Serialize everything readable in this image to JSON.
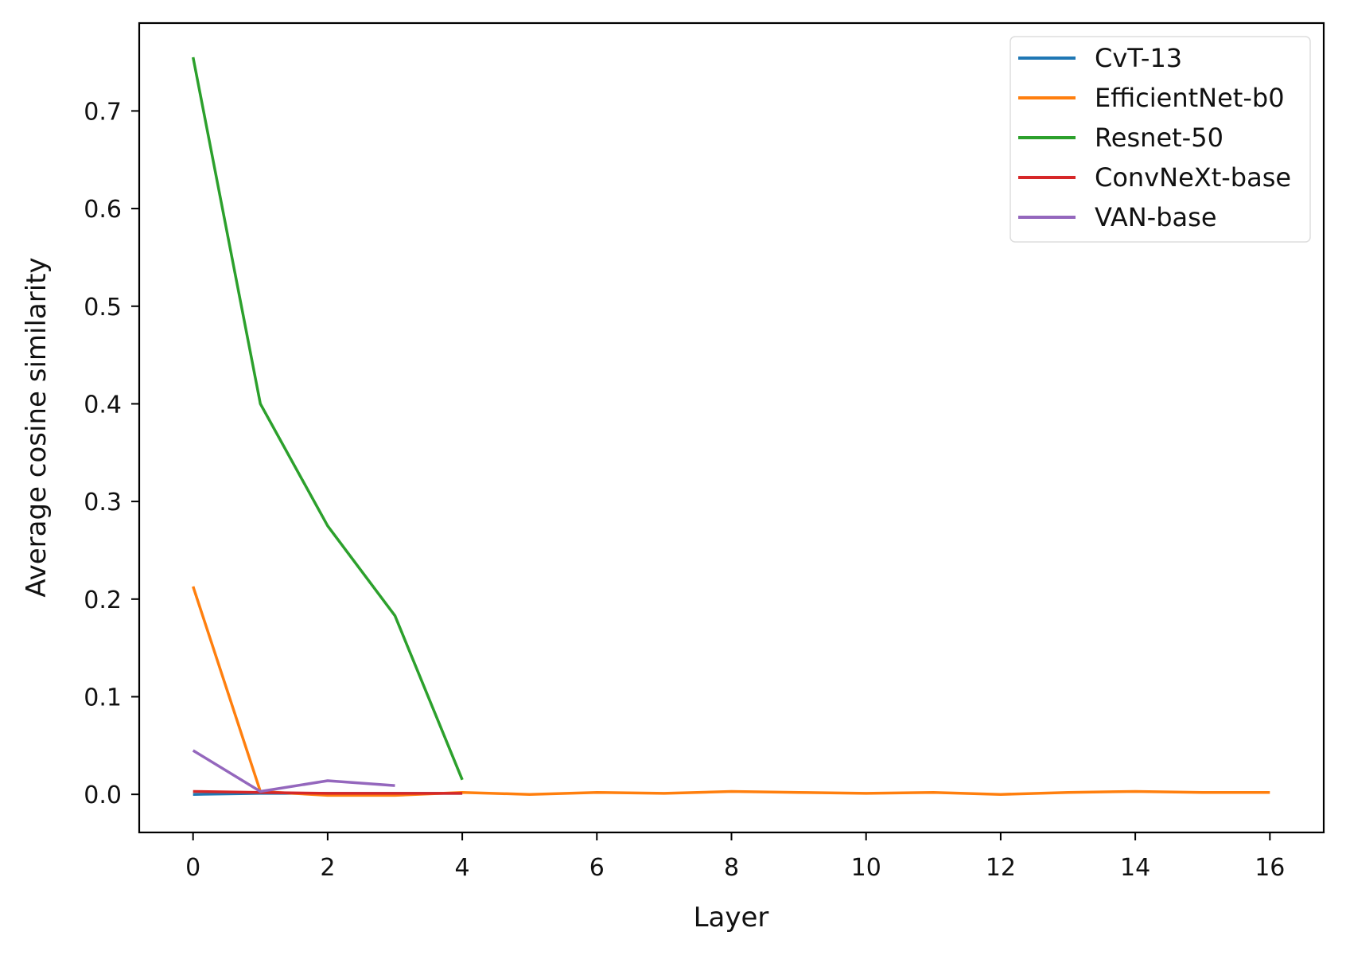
{
  "chart_data": {
    "type": "line",
    "xlabel": "Layer",
    "ylabel": "Average cosine similarity",
    "xlim": [
      -0.8,
      16.8
    ],
    "ylim": [
      -0.039,
      0.79
    ],
    "xticks": [
      0,
      2,
      4,
      6,
      8,
      10,
      12,
      14,
      16
    ],
    "xtick_labels": [
      "0",
      "2",
      "4",
      "6",
      "8",
      "10",
      "12",
      "14",
      "16"
    ],
    "yticks": [
      0.0,
      0.1,
      0.2,
      0.3,
      0.4,
      0.5,
      0.6,
      0.7
    ],
    "ytick_labels": [
      "0.0",
      "0.1",
      "0.2",
      "0.3",
      "0.4",
      "0.5",
      "0.6",
      "0.7"
    ],
    "grid": false,
    "legend_position": "top-right",
    "series": [
      {
        "name": "CvT-13",
        "color": "#1f77b4",
        "x": [
          0,
          1,
          2,
          3,
          4
        ],
        "y": [
          0.0,
          0.001,
          0.001,
          0.001,
          0.001
        ]
      },
      {
        "name": "EfficientNet-b0",
        "color": "#ff7f0e",
        "x": [
          0,
          1,
          2,
          3,
          4,
          5,
          6,
          7,
          8,
          9,
          10,
          11,
          12,
          13,
          14,
          15,
          16
        ],
        "y": [
          0.213,
          0.003,
          -0.001,
          -0.001,
          0.002,
          0.0,
          0.002,
          0.001,
          0.003,
          0.002,
          0.001,
          0.002,
          0.0,
          0.002,
          0.003,
          0.002,
          0.002
        ]
      },
      {
        "name": "Resnet-50",
        "color": "#2ca02c",
        "x": [
          0,
          1,
          2,
          3,
          4
        ],
        "y": [
          0.755,
          0.4,
          0.275,
          0.183,
          0.015
        ]
      },
      {
        "name": "ConvNeXt-base",
        "color": "#d62728",
        "x": [
          0,
          1,
          2,
          3,
          4
        ],
        "y": [
          0.003,
          0.002,
          0.001,
          0.001,
          0.001
        ]
      },
      {
        "name": "VAN-base",
        "color": "#9467bd",
        "x": [
          0,
          1,
          2,
          3
        ],
        "y": [
          0.045,
          0.003,
          0.014,
          0.009
        ]
      }
    ]
  }
}
